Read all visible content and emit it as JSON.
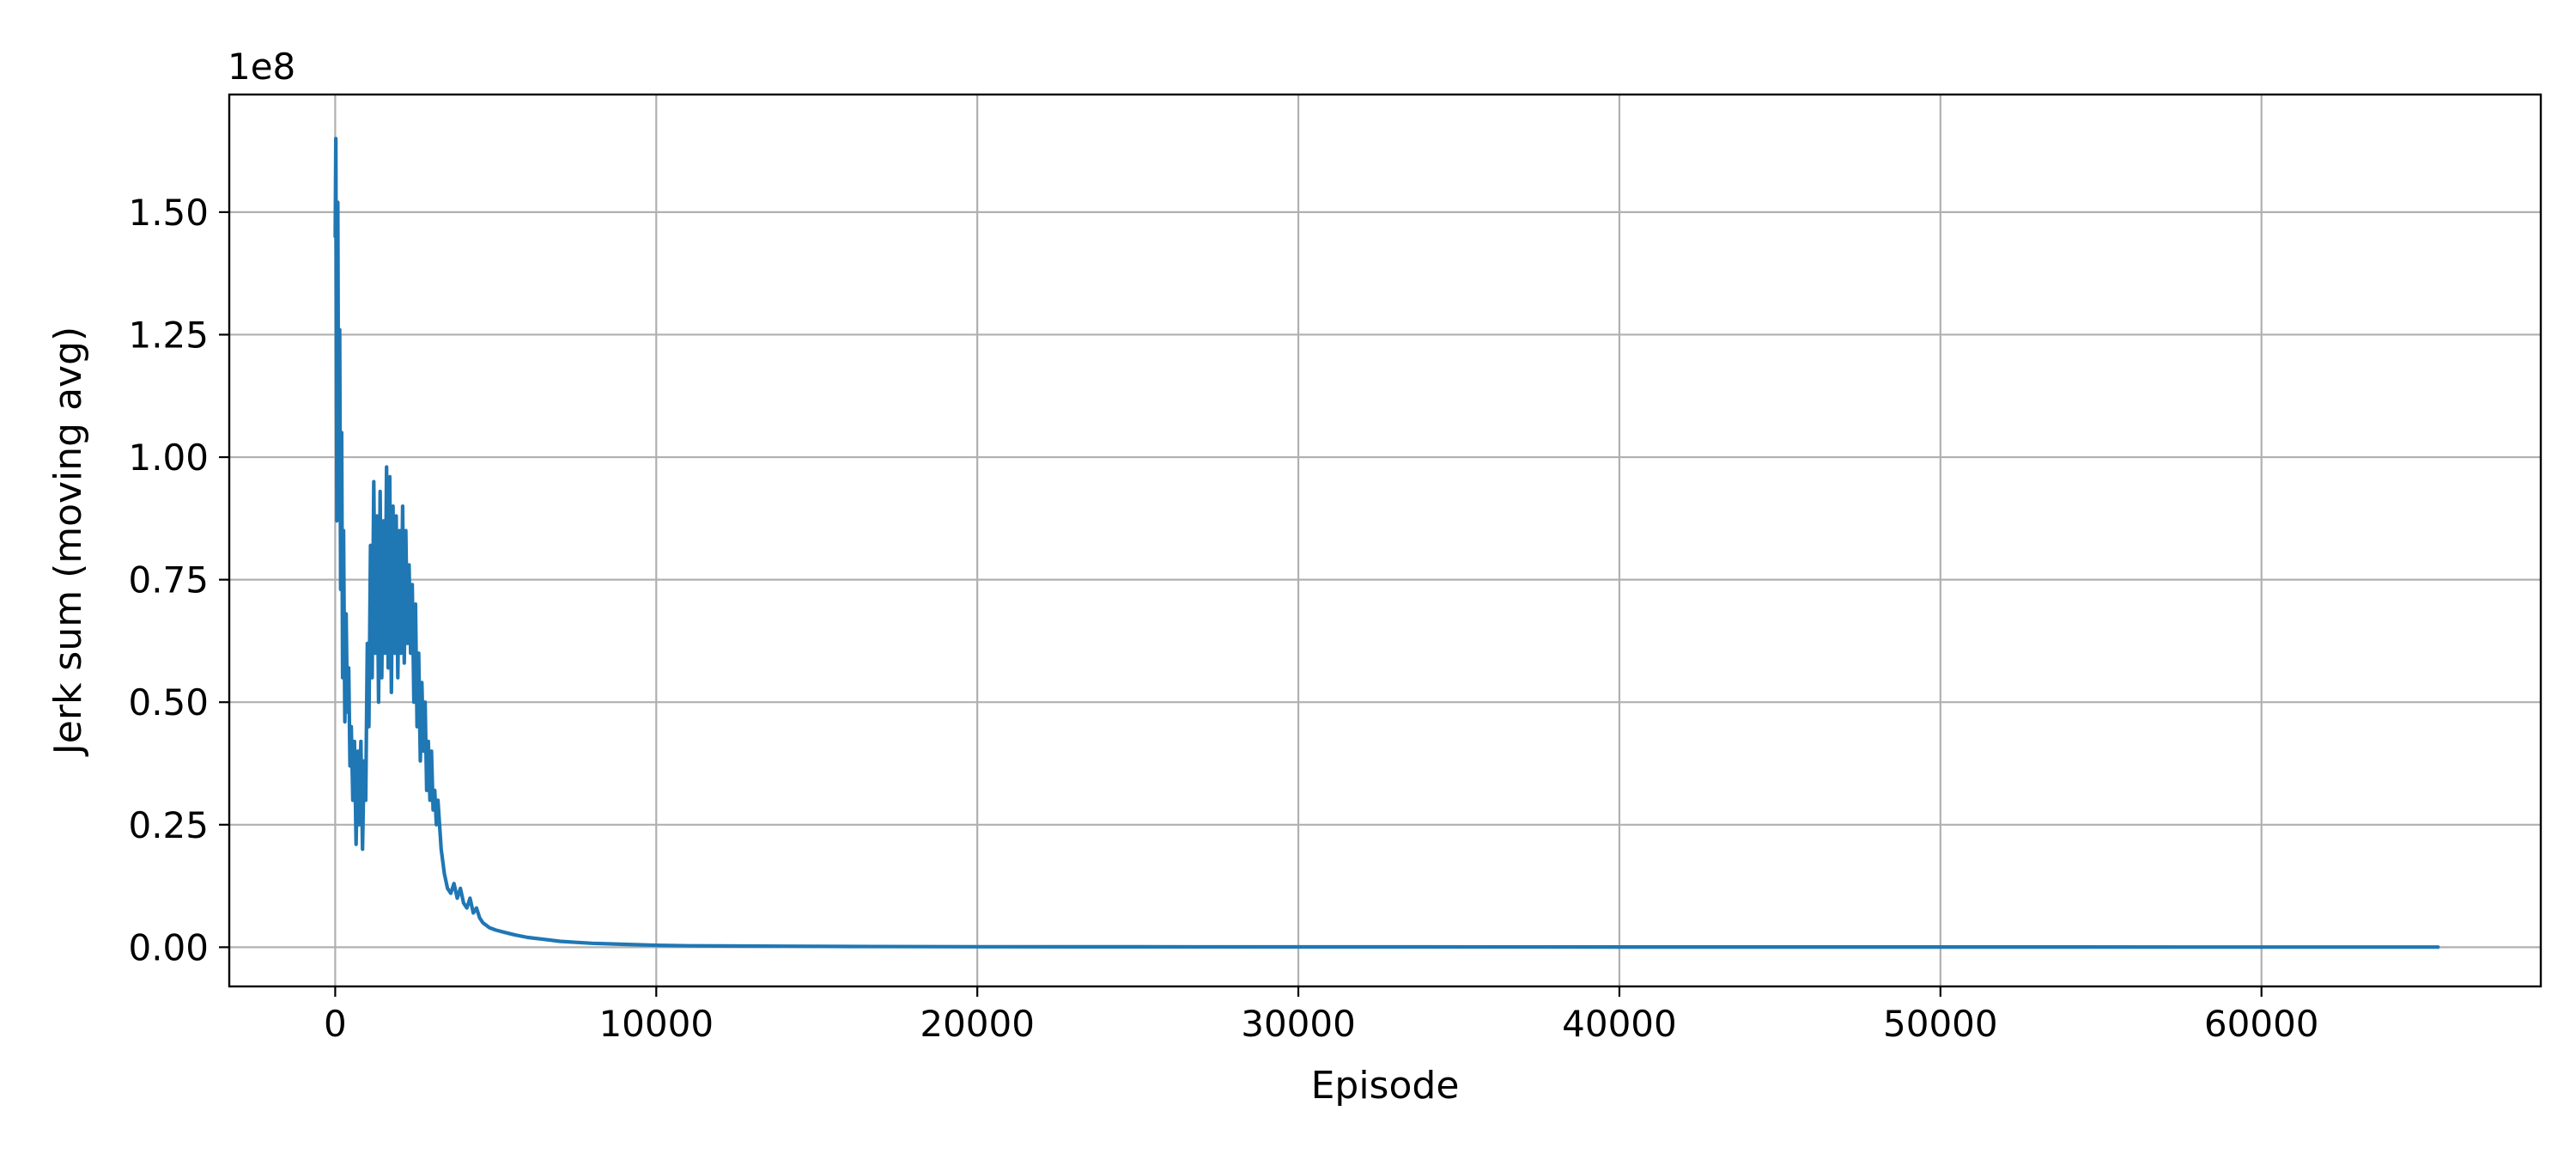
{
  "chart_data": {
    "type": "line",
    "title": "",
    "xlabel": "Episode",
    "ylabel": "Jerk sum (moving avg)",
    "y_offset_label": "1e8",
    "y_scale_factor": 100000000,
    "xlim": [
      -3300,
      68700
    ],
    "ylim": [
      -0.08,
      1.74
    ],
    "x_ticks": [
      0,
      10000,
      20000,
      30000,
      40000,
      50000,
      60000
    ],
    "x_tick_labels": [
      "0",
      "10000",
      "20000",
      "30000",
      "40000",
      "50000",
      "60000"
    ],
    "y_ticks": [
      0.0,
      0.25,
      0.5,
      0.75,
      1.0,
      1.25,
      1.5
    ],
    "y_tick_labels": [
      "0.00",
      "0.25",
      "0.50",
      "0.75",
      "1.00",
      "1.25",
      "1.50"
    ],
    "grid": true,
    "colors": {
      "series": "#1f77b4",
      "grid": "#b0b0b0",
      "axis": "#000000"
    },
    "series": [
      {
        "values_unit": "1e8",
        "x": [
          0,
          20,
          50,
          80,
          110,
          140,
          170,
          200,
          230,
          260,
          300,
          340,
          380,
          420,
          460,
          500,
          550,
          600,
          650,
          700,
          750,
          800,
          850,
          900,
          950,
          1000,
          1050,
          1100,
          1150,
          1200,
          1250,
          1300,
          1350,
          1400,
          1450,
          1500,
          1550,
          1600,
          1650,
          1700,
          1750,
          1800,
          1850,
          1900,
          1950,
          2000,
          2050,
          2100,
          2150,
          2200,
          2250,
          2300,
          2350,
          2400,
          2450,
          2500,
          2550,
          2600,
          2650,
          2700,
          2750,
          2800,
          2850,
          2900,
          2950,
          3000,
          3050,
          3100,
          3150,
          3200,
          3300,
          3400,
          3500,
          3600,
          3700,
          3800,
          3900,
          4000,
          4100,
          4200,
          4300,
          4400,
          4500,
          4600,
          4700,
          4800,
          5000,
          5300,
          5600,
          6000,
          6500,
          7000,
          7500,
          8000,
          9000,
          10000,
          11000,
          12000,
          14000,
          16000,
          20000,
          25000,
          30000,
          40000,
          50000,
          60000,
          65500
        ],
        "values": [
          1.45,
          1.65,
          0.87,
          1.52,
          0.9,
          1.26,
          0.73,
          1.05,
          0.55,
          0.85,
          0.46,
          0.68,
          0.48,
          0.57,
          0.37,
          0.45,
          0.3,
          0.42,
          0.21,
          0.4,
          0.25,
          0.42,
          0.2,
          0.38,
          0.3,
          0.62,
          0.45,
          0.82,
          0.55,
          0.95,
          0.6,
          0.88,
          0.5,
          0.93,
          0.55,
          0.87,
          0.6,
          0.98,
          0.57,
          0.96,
          0.52,
          0.9,
          0.6,
          0.88,
          0.55,
          0.85,
          0.6,
          0.9,
          0.58,
          0.85,
          0.62,
          0.78,
          0.6,
          0.74,
          0.5,
          0.7,
          0.45,
          0.6,
          0.38,
          0.54,
          0.4,
          0.5,
          0.32,
          0.42,
          0.3,
          0.4,
          0.28,
          0.32,
          0.25,
          0.3,
          0.2,
          0.15,
          0.12,
          0.11,
          0.13,
          0.1,
          0.12,
          0.09,
          0.08,
          0.1,
          0.07,
          0.08,
          0.06,
          0.05,
          0.045,
          0.04,
          0.035,
          0.03,
          0.025,
          0.02,
          0.016,
          0.012,
          0.01,
          0.008,
          0.006,
          0.004,
          0.003,
          0.0025,
          0.002,
          0.0015,
          0.001,
          0.0008,
          0.0006,
          0.0005,
          0.0004,
          0.0003,
          0.0003
        ]
      }
    ]
  }
}
